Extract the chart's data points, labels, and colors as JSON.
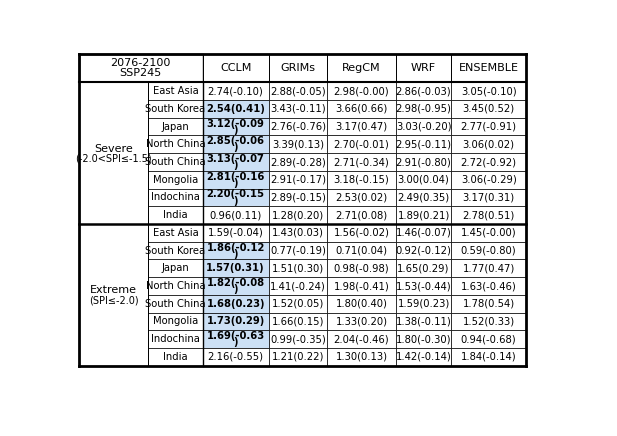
{
  "title_line1": "2076-2100",
  "title_line2": "SSP245",
  "col_headers": [
    "CCLM",
    "GRIMs",
    "RegCM",
    "WRF",
    "ENSEMBLE"
  ],
  "row_group1_label_line1": "Severe",
  "row_group1_label_line2": "(-2.0<SPI≤-1.5)",
  "row_group2_label_line1": "Extreme",
  "row_group2_label_line2": "(SPI≤-2.0)",
  "subrows": [
    "East Asia",
    "South Korea",
    "Japan",
    "North China",
    "South China",
    "Mongolia",
    "Indochina",
    "India"
  ],
  "severe_data": [
    [
      "2.74(-0.10)",
      "2.88(-0.05)",
      "2.98(-0.00)",
      "2.86(-0.03)",
      "3.05(-0.10)"
    ],
    [
      "2.54(0.41)",
      "3.43(-0.11)",
      "3.66(0.66)",
      "2.98(-0.95)",
      "3.45(0.52)"
    ],
    [
      "3.12(-0.09)",
      "2.76(-0.76)",
      "3.17(0.47)",
      "3.03(-0.20)",
      "2.77(-0.91)"
    ],
    [
      "2.85(-0.06)",
      "3.39(0.13)",
      "2.70(-0.01)",
      "2.95(-0.11)",
      "3.06(0.02)"
    ],
    [
      "3.13(-0.07)",
      "2.89(-0.28)",
      "2.71(-0.34)",
      "2.91(-0.80)",
      "2.72(-0.92)"
    ],
    [
      "2.81(-0.16)",
      "2.91(-0.17)",
      "3.18(-0.15)",
      "3.00(0.04)",
      "3.06(-0.29)"
    ],
    [
      "2.20(-0.15)",
      "2.89(-0.15)",
      "2.53(0.02)",
      "2.49(0.35)",
      "3.17(0.31)"
    ],
    [
      "0.96(0.11)",
      "1.28(0.20)",
      "2.71(0.08)",
      "1.89(0.21)",
      "2.78(0.51)"
    ]
  ],
  "extreme_data": [
    [
      "1.59(-0.04)",
      "1.43(0.03)",
      "1.56(-0.02)",
      "1.46(-0.07)",
      "1.45(-0.00)"
    ],
    [
      "1.86(-0.12)",
      "0.77(-0.19)",
      "0.71(0.04)",
      "0.92(-0.12)",
      "0.59(-0.80)"
    ],
    [
      "1.57(0.31)",
      "1.51(0.30)",
      "0.98(-0.98)",
      "1.65(0.29)",
      "1.77(0.47)"
    ],
    [
      "1.82(-0.08)",
      "1.41(-0.24)",
      "1.98(-0.41)",
      "1.53(-0.44)",
      "1.63(-0.46)"
    ],
    [
      "1.68(0.23)",
      "1.52(0.05)",
      "1.80(0.40)",
      "1.59(0.23)",
      "1.78(0.54)"
    ],
    [
      "1.73(0.29)",
      "1.66(0.15)",
      "1.33(0.20)",
      "1.38(-0.11)",
      "1.52(0.33)"
    ],
    [
      "1.69(-0.63)",
      "0.99(-0.35)",
      "2.04(-0.46)",
      "1.80(-0.30)",
      "0.94(-0.68)"
    ],
    [
      "2.16(-0.55)",
      "1.21(0.22)",
      "1.30(0.13)",
      "1.42(-0.14)",
      "1.84(-0.14)"
    ]
  ],
  "cclm_bold_severe": [
    false,
    true,
    true,
    true,
    true,
    true,
    true,
    false
  ],
  "cclm_bold_extreme": [
    false,
    true,
    true,
    true,
    true,
    true,
    true,
    false
  ],
  "cclm_bg_severe": [
    false,
    true,
    true,
    true,
    true,
    true,
    true,
    false
  ],
  "cclm_bg_extreme": [
    false,
    true,
    true,
    true,
    true,
    true,
    true,
    false
  ],
  "highlight_color": "#cce0f5",
  "font_size": 7.2,
  "header_font_size": 8.0,
  "group_font_size": 8.0,
  "group_sub_font_size": 7.0
}
